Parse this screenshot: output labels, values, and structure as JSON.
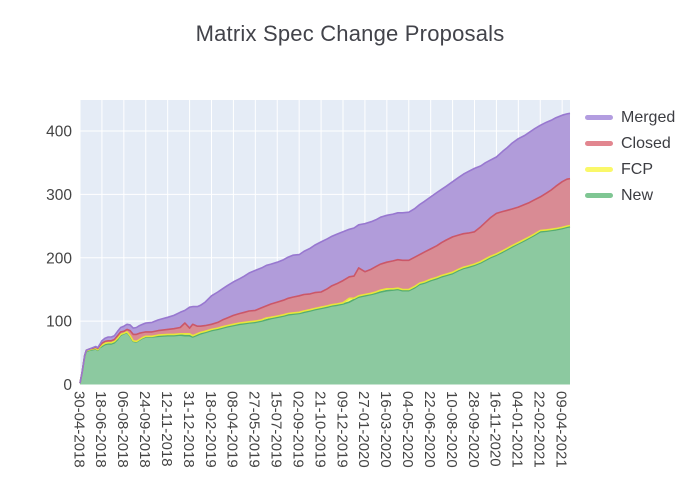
{
  "chart_data": {
    "type": "area",
    "stacked": true,
    "title": "Matrix Spec Change Proposals",
    "xlabel": "",
    "ylabel": "",
    "grid": true,
    "legend_position": "right",
    "plot_bgcolor": "#e5ecf6",
    "grid_color": "#ffffff",
    "tick_label_color": "#444444",
    "title_color": "#42434a",
    "ylim": [
      0,
      449
    ],
    "y_ticks": [
      0,
      100,
      200,
      300,
      400
    ],
    "x_range_weeks": [
      0,
      156.5
    ],
    "x_tick_weeks": [
      0,
      7,
      14,
      21,
      28,
      35,
      42,
      49,
      56,
      63,
      70,
      77,
      84,
      91,
      98,
      105,
      112,
      119,
      126,
      133,
      140,
      147,
      154
    ],
    "x_tick_labels": [
      "30-04-2018",
      "18-06-2018",
      "06-08-2018",
      "24-09-2018",
      "12-11-2018",
      "31-12-2018",
      "18-02-2019",
      "08-04-2019",
      "27-05-2019",
      "15-07-2019",
      "02-09-2019",
      "21-10-2019",
      "09-12-2019",
      "27-01-2020",
      "16-03-2020",
      "04-05-2020",
      "22-06-2020",
      "10-08-2020",
      "28-09-2020",
      "16-11-2020",
      "04-01-2021",
      "22-02-2021",
      "09-04-2021"
    ],
    "stack_order_bottom_to_top": [
      "New",
      "FCP",
      "Closed",
      "Merged"
    ],
    "styles": {
      "New": {
        "fill": "#8cc9a0",
        "line": "#55ad72",
        "swatch": "#7fc693"
      },
      "FCP": {
        "fill": "#f6f464",
        "line": "#e8e63a",
        "swatch": "#faf869"
      },
      "Closed": {
        "fill": "#d98b94",
        "line": "#cb5768",
        "swatch": "#e2868f"
      },
      "Merged": {
        "fill": "#b19cda",
        "line": "#9878d0",
        "swatch": "#b39de0"
      }
    },
    "samples_weeks": [
      0,
      0.7,
      1.5,
      2,
      3,
      4,
      5,
      5.7,
      6.3,
      7,
      8,
      9,
      10,
      11,
      12,
      13,
      14,
      15,
      16,
      17,
      18,
      19,
      20,
      21,
      23,
      25,
      28,
      30,
      32,
      33.5,
      35,
      36,
      37.5,
      38.5,
      40,
      42,
      44,
      45.5,
      47,
      49,
      51,
      52.5,
      54,
      56,
      58,
      59.5,
      61,
      63,
      65,
      66.5,
      68,
      70,
      71.5,
      73.5,
      75,
      77,
      79,
      80.5,
      82,
      84,
      86,
      87.5,
      89,
      91,
      93,
      94.5,
      96,
      98,
      100,
      101.5,
      103,
      105,
      107,
      108.5,
      110,
      112,
      114,
      115.5,
      117,
      119,
      121,
      122.5,
      124,
      126,
      128,
      129.5,
      131,
      133,
      135,
      136.5,
      138,
      140,
      142,
      143.5,
      145,
      147,
      149,
      150.5,
      152,
      154,
      155.5,
      156.5
    ],
    "series": [
      {
        "name": "New",
        "values": [
          2,
          20,
          45,
          52,
          54,
          55,
          56,
          54,
          58,
          60,
          63,
          64,
          64,
          66,
          71,
          78,
          80,
          82,
          76,
          68,
          67,
          70,
          73,
          75,
          75,
          76,
          77,
          77,
          78,
          77,
          77,
          75,
          78,
          80,
          82,
          85,
          87,
          89,
          91,
          93,
          95,
          96,
          97,
          98,
          100,
          102,
          104,
          106,
          108,
          110,
          111,
          112,
          114,
          116,
          118,
          120,
          122,
          124,
          125,
          127,
          130,
          134,
          138,
          140,
          142,
          144,
          146,
          148,
          149,
          150,
          148,
          148,
          153,
          158,
          160,
          164,
          167,
          170,
          172,
          175,
          180,
          183,
          185,
          188,
          192,
          196,
          200,
          204,
          209,
          213,
          217,
          222,
          227,
          231,
          235,
          241,
          242,
          243,
          244,
          246,
          248,
          249
        ]
      },
      {
        "name": "FCP",
        "values": [
          0,
          0,
          1,
          1,
          1,
          1,
          1,
          1,
          1,
          2,
          2,
          2,
          2,
          2,
          2,
          1,
          1,
          1,
          1,
          1,
          1,
          1,
          1,
          1,
          1,
          2,
          2,
          2,
          2,
          3,
          3,
          2,
          2,
          2,
          2,
          2,
          2,
          2,
          2,
          2,
          2,
          2,
          2,
          2,
          2,
          3,
          2,
          2,
          2,
          2,
          2,
          2,
          2,
          2,
          2,
          2,
          2,
          2,
          2,
          2,
          6,
          2,
          2,
          2,
          2,
          2,
          3,
          3,
          2,
          2,
          2,
          2,
          2,
          2,
          2,
          2,
          2,
          2,
          2,
          2,
          2,
          2,
          2,
          2,
          2,
          2,
          2,
          2,
          2,
          2,
          2,
          2,
          2,
          2,
          2,
          2,
          2,
          2,
          2,
          2,
          2,
          2
        ]
      },
      {
        "name": "Closed",
        "values": [
          0,
          0,
          0,
          1,
          1,
          1,
          2,
          2,
          2,
          3,
          3,
          3,
          3,
          3,
          4,
          4,
          3,
          4,
          8,
          10,
          11,
          10,
          8,
          7,
          7,
          7,
          8,
          9,
          10,
          17,
          9,
          18,
          12,
          10,
          9,
          8,
          9,
          11,
          12,
          14,
          15,
          16,
          17,
          17,
          19,
          19,
          21,
          22,
          23,
          24,
          25,
          26,
          26,
          25,
          25,
          24,
          27,
          30,
          32,
          35,
          34,
          35,
          44,
          36,
          38,
          40,
          41,
          42,
          44,
          45,
          46,
          46,
          46,
          45,
          47,
          48,
          50,
          52,
          54,
          56,
          54,
          53,
          52,
          51,
          55,
          58,
          61,
          64,
          62,
          60,
          58,
          56,
          55,
          54,
          54,
          53,
          58,
          62,
          67,
          72,
          74,
          74
        ]
      },
      {
        "name": "Merged",
        "values": [
          0,
          0,
          0,
          0,
          0,
          1,
          1,
          1,
          2,
          4,
          5,
          6,
          6,
          6,
          7,
          7,
          8,
          8,
          9,
          10,
          11,
          12,
          13,
          14,
          15,
          17,
          19,
          21,
          24,
          20,
          33,
          28,
          31,
          33,
          37,
          45,
          48,
          49,
          51,
          53,
          55,
          57,
          60,
          63,
          63,
          64,
          63,
          63,
          64,
          65,
          66,
          65,
          68,
          72,
          75,
          79,
          79,
          78,
          78,
          77,
          75,
          76,
          68,
          76,
          75,
          74,
          74,
          74,
          74,
          74,
          75,
          76,
          77,
          79,
          80,
          82,
          84,
          84,
          85,
          87,
          91,
          94,
          97,
          100,
          96,
          94,
          91,
          89,
          95,
          99,
          104,
          108,
          109,
          111,
          112,
          113,
          112,
          110,
          108,
          105,
          103,
          103
        ]
      }
    ],
    "legend_items_top_to_bottom": [
      "Merged",
      "Closed",
      "FCP",
      "New"
    ]
  }
}
